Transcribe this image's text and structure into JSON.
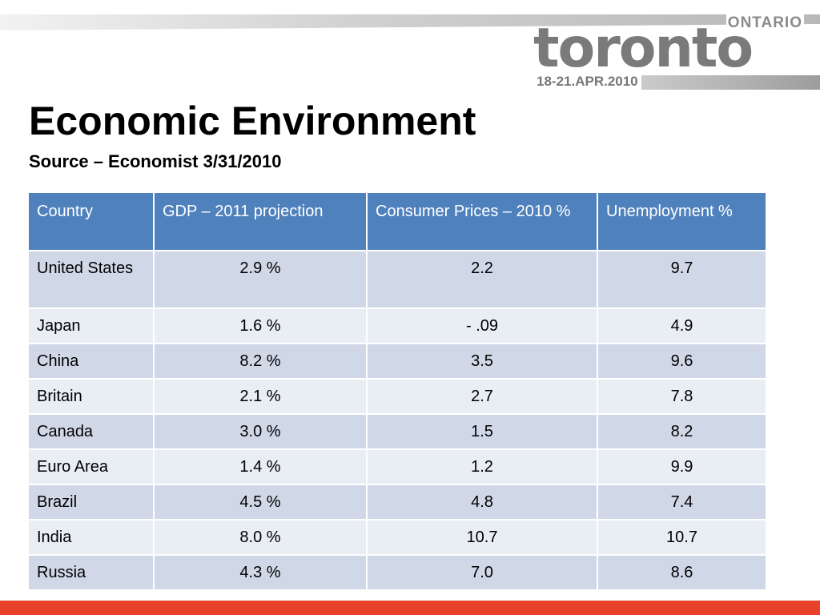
{
  "logo": {
    "region": "ONTARIO",
    "city": "toronto",
    "dates": "18-21.APR.2010"
  },
  "slide": {
    "title": "Economic Environment",
    "subtitle": "Source – Economist 3/31/2010"
  },
  "table": {
    "headers": [
      "Country",
      "GDP – 2011 projection",
      "Consumer Prices – 2010 %",
      "Unemployment %"
    ],
    "rows": [
      [
        "United States",
        "2.9 %",
        "2.2",
        "9.7"
      ],
      [
        "Japan",
        "1.6 %",
        "- .09",
        "4.9"
      ],
      [
        "China",
        "8.2 %",
        "3.5",
        "9.6"
      ],
      [
        "Britain",
        "2.1 %",
        "2.7",
        "7.8"
      ],
      [
        "Canada",
        "3.0 %",
        "1.5",
        "8.2"
      ],
      [
        "Euro Area",
        "1.4 %",
        "1.2",
        "9.9"
      ],
      [
        "Brazil",
        "4.5 %",
        "4.8",
        "7.4"
      ],
      [
        "India",
        "8.0 %",
        "10.7",
        "10.7"
      ],
      [
        "Russia",
        "4.3 %",
        "7.0",
        "8.6"
      ]
    ]
  },
  "colors": {
    "header_bg": "#4f81bd",
    "row_odd": "#d0d8e8",
    "row_even": "#e9edf4",
    "accent_bar": "#e8412b"
  }
}
